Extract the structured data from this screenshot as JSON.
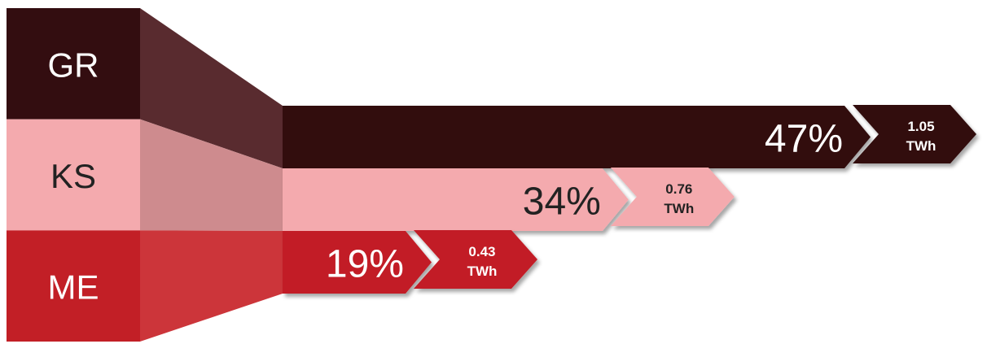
{
  "chart_data": {
    "type": "bar",
    "title": "",
    "subtitle": "",
    "xlabel": "",
    "ylabel": "",
    "unit": "TWh",
    "categories": [
      "GR",
      "KS",
      "ME"
    ],
    "percent_labels": [
      "47%",
      "34%",
      "19%"
    ],
    "value_labels": [
      "1.05",
      "0.76",
      "0.43"
    ],
    "unit_labels": [
      "TWh",
      "TWh",
      "TWh"
    ],
    "series": [
      {
        "values": [
          1.05,
          0.76,
          0.43
        ]
      }
    ],
    "percentages": [
      47,
      34,
      19
    ],
    "grid": false,
    "legend": "none"
  },
  "colors": {
    "GR": {
      "base": "#330d10",
      "fold": "#592b2f",
      "flow": "#330d10",
      "badge": "#330d10",
      "label": "#ffffff"
    },
    "KS": {
      "base": "#f4aaae",
      "fold": "#ce8b8e",
      "flow": "#f4aaae",
      "badge": "#f4aaae",
      "label": "#222222"
    },
    "ME": {
      "base": "#c21f26",
      "fold": "#cc353a",
      "flow": "#c21f26",
      "badge": "#c21f26",
      "label": "#ffffff"
    }
  }
}
